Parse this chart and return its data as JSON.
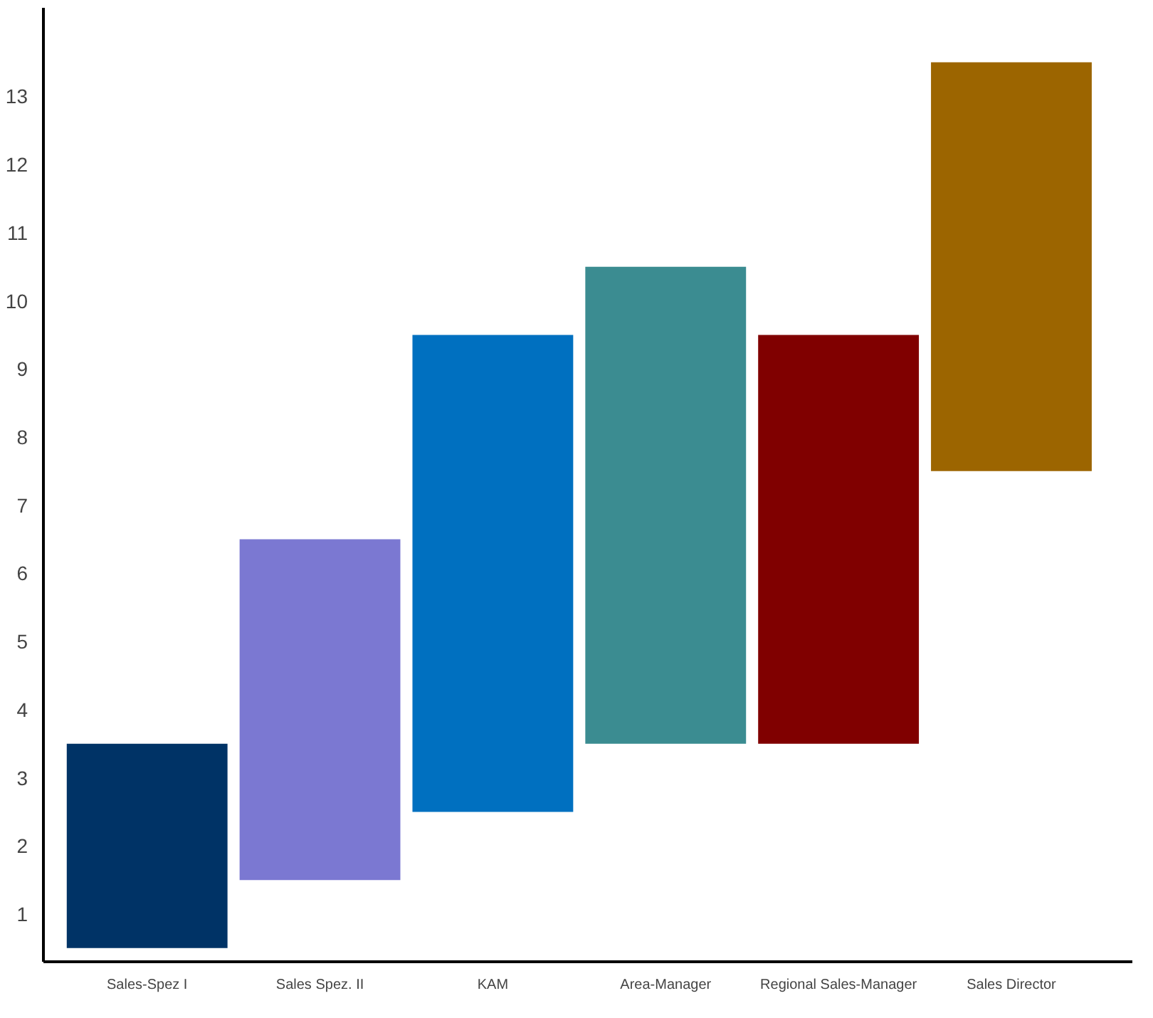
{
  "chart_data": {
    "type": "bar",
    "categories": [
      "Sales-Spez I",
      "Sales Spez. II",
      "KAM",
      "Area-Manager",
      "Regional Sales-Manager",
      "Sales Director"
    ],
    "base": [
      0.5,
      1.5,
      2.5,
      3.5,
      3.5,
      7.5
    ],
    "values": [
      3,
      5,
      7,
      7,
      6,
      6
    ],
    "colors": [
      "#003366",
      "#7b78d2",
      "#0070c0",
      "#3b8c91",
      "#800000",
      "#9c6500"
    ],
    "ylim": [
      0.3,
      14.3
    ],
    "yticks": [
      1,
      2,
      3,
      4,
      5,
      6,
      7,
      8,
      9,
      10,
      11,
      12,
      13
    ],
    "grid": false
  }
}
